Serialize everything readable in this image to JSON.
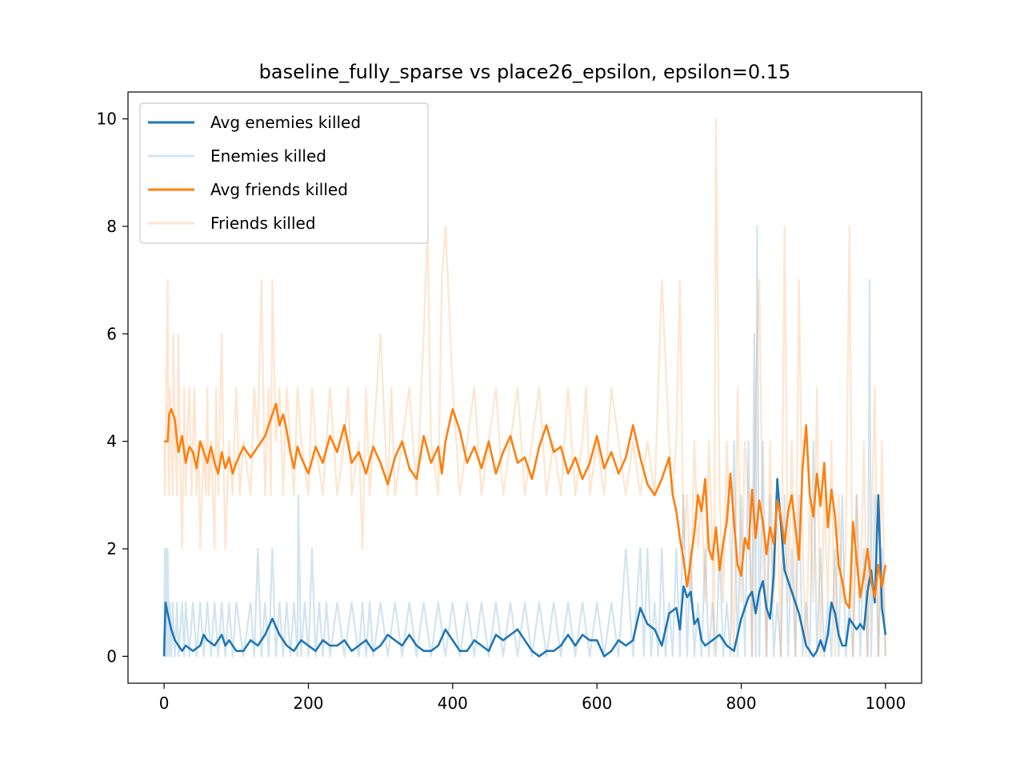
{
  "chart_data": {
    "type": "line",
    "title": "baseline_fully_sparse vs place26_epsilon, epsilon=0.15",
    "xlabel": "",
    "ylabel": "",
    "xlim": [
      -50,
      1050
    ],
    "ylim": [
      -0.5,
      10.5
    ],
    "xticks": [
      0,
      200,
      400,
      600,
      800,
      1000
    ],
    "yticks": [
      0,
      2,
      4,
      6,
      8,
      10
    ],
    "grid": false,
    "legend_position": "top-left",
    "series": [
      {
        "name": "Avg enemies killed",
        "color": "#1f77b4",
        "opacity": 1,
        "smoothed": true,
        "x": [
          0,
          2,
          5,
          10,
          15,
          20,
          25,
          30,
          40,
          50,
          55,
          60,
          70,
          80,
          85,
          90,
          100,
          110,
          120,
          130,
          140,
          150,
          160,
          170,
          180,
          190,
          200,
          210,
          220,
          230,
          240,
          250,
          260,
          270,
          280,
          290,
          300,
          310,
          320,
          330,
          340,
          350,
          360,
          370,
          380,
          390,
          400,
          410,
          420,
          430,
          440,
          450,
          460,
          470,
          480,
          490,
          500,
          510,
          520,
          530,
          540,
          550,
          560,
          570,
          580,
          590,
          600,
          610,
          620,
          630,
          640,
          650,
          660,
          670,
          680,
          690,
          700,
          710,
          715,
          720,
          725,
          730,
          735,
          740,
          745,
          750,
          760,
          770,
          780,
          790,
          800,
          805,
          810,
          815,
          820,
          825,
          830,
          835,
          840,
          845,
          850,
          860,
          870,
          880,
          890,
          900,
          905,
          910,
          915,
          920,
          925,
          930,
          935,
          940,
          945,
          950,
          960,
          965,
          970,
          975,
          980,
          985,
          990,
          995,
          1000
        ],
        "y": [
          0,
          1.0,
          0.8,
          0.5,
          0.3,
          0.2,
          0.1,
          0.2,
          0.1,
          0.2,
          0.4,
          0.3,
          0.2,
          0.4,
          0.2,
          0.3,
          0.1,
          0.1,
          0.3,
          0.2,
          0.4,
          0.7,
          0.4,
          0.2,
          0.1,
          0.3,
          0.2,
          0.1,
          0.3,
          0.2,
          0.2,
          0.3,
          0.1,
          0.2,
          0.3,
          0.1,
          0.2,
          0.4,
          0.3,
          0.2,
          0.4,
          0.2,
          0.1,
          0.1,
          0.2,
          0.5,
          0.3,
          0.1,
          0.1,
          0.3,
          0.2,
          0.1,
          0.4,
          0.3,
          0.4,
          0.5,
          0.3,
          0.1,
          0.0,
          0.1,
          0.1,
          0.2,
          0.4,
          0.2,
          0.4,
          0.3,
          0.3,
          0.0,
          0.1,
          0.3,
          0.2,
          0.3,
          0.9,
          0.6,
          0.5,
          0.2,
          0.8,
          0.9,
          0.5,
          1.3,
          1.1,
          1.2,
          0.6,
          0.7,
          0.3,
          0.2,
          0.3,
          0.4,
          0.2,
          0.1,
          0.7,
          0.9,
          1.1,
          1.2,
          0.8,
          1.2,
          1.4,
          0.9,
          0.7,
          1.5,
          3.3,
          1.6,
          1.2,
          0.8,
          0.2,
          0.0,
          0.1,
          0.3,
          0.1,
          0.4,
          1.0,
          0.8,
          0.4,
          0.2,
          0.2,
          0.7,
          0.5,
          0.6,
          0.5,
          1.2,
          1.6,
          1.0,
          3.0,
          0.9,
          0.4
        ]
      },
      {
        "name": "Enemies killed",
        "color": "#1f77b4",
        "opacity": 0.2,
        "smoothed": false,
        "x": [
          0,
          1,
          2,
          3,
          4,
          5,
          6,
          7,
          8,
          10,
          12,
          15,
          18,
          20,
          25,
          28,
          30,
          35,
          40,
          45,
          50,
          55,
          60,
          65,
          70,
          75,
          80,
          85,
          90,
          95,
          100,
          110,
          120,
          125,
          130,
          135,
          140,
          145,
          150,
          155,
          160,
          165,
          170,
          175,
          180,
          185,
          186,
          190,
          195,
          200,
          205,
          210,
          215,
          220,
          225,
          230,
          240,
          250,
          260,
          270,
          275,
          280,
          285,
          290,
          300,
          310,
          320,
          330,
          340,
          350,
          360,
          370,
          380,
          390,
          400,
          410,
          420,
          430,
          440,
          450,
          460,
          470,
          480,
          490,
          500,
          510,
          520,
          530,
          540,
          550,
          560,
          570,
          580,
          590,
          600,
          610,
          620,
          630,
          640,
          650,
          660,
          665,
          670,
          675,
          680,
          685,
          690,
          695,
          700,
          705,
          710,
          715,
          720,
          725,
          730,
          735,
          740,
          745,
          750,
          755,
          760,
          765,
          770,
          775,
          780,
          785,
          790,
          795,
          800,
          805,
          810,
          815,
          818,
          820,
          822,
          825,
          830,
          835,
          840,
          845,
          850,
          855,
          860,
          865,
          870,
          875,
          880,
          885,
          890,
          895,
          900,
          905,
          910,
          915,
          920,
          925,
          930,
          935,
          940,
          945,
          950,
          955,
          960,
          965,
          970,
          975,
          978,
          980,
          985,
          990,
          995,
          1000
        ],
        "y": [
          0,
          2,
          0,
          2,
          0,
          2,
          1,
          0,
          1,
          0,
          1,
          0,
          1,
          0,
          1,
          0,
          1,
          0,
          1,
          0,
          1,
          0,
          1,
          0,
          1,
          0,
          1,
          0,
          1,
          0,
          1,
          0,
          1,
          0,
          2,
          0,
          1,
          0,
          2,
          0,
          1,
          0,
          1,
          0,
          1,
          0,
          3,
          0,
          1,
          0,
          2,
          0,
          1,
          0,
          1,
          0,
          1,
          0,
          1,
          0,
          1,
          0,
          1,
          0,
          1,
          0,
          1,
          0,
          1,
          0,
          1,
          0,
          1,
          0,
          1,
          0,
          1,
          0,
          1,
          0,
          1,
          0,
          1,
          0,
          1,
          0,
          1,
          0,
          1,
          0,
          1,
          0,
          1,
          0,
          1,
          0,
          1,
          0,
          2,
          0,
          2,
          0,
          2,
          0,
          1,
          0,
          2,
          0,
          1,
          0,
          2,
          0,
          3,
          0,
          2,
          0,
          1,
          0,
          2,
          0,
          1,
          0,
          2,
          0,
          1,
          0,
          4,
          0,
          3,
          0,
          4,
          0,
          6,
          0,
          8,
          0,
          4,
          0,
          3,
          0,
          1,
          0,
          3,
          0,
          2,
          0,
          3,
          0,
          1,
          0,
          4,
          0,
          2,
          0,
          1,
          0,
          2,
          0,
          3,
          0,
          1,
          0,
          3,
          0,
          2,
          0,
          7,
          0,
          3,
          0,
          2,
          0
        ]
      },
      {
        "name": "Avg friends killed",
        "color": "#ff7f0e",
        "opacity": 1,
        "smoothed": true,
        "x": [
          0,
          5,
          7,
          10,
          15,
          18,
          20,
          25,
          30,
          35,
          40,
          45,
          50,
          55,
          60,
          65,
          70,
          75,
          80,
          85,
          90,
          95,
          100,
          110,
          120,
          130,
          140,
          150,
          155,
          160,
          165,
          170,
          175,
          180,
          185,
          190,
          200,
          210,
          220,
          230,
          240,
          250,
          260,
          270,
          280,
          290,
          300,
          310,
          320,
          330,
          340,
          350,
          360,
          370,
          380,
          385,
          390,
          400,
          410,
          420,
          430,
          440,
          450,
          460,
          470,
          480,
          490,
          500,
          510,
          520,
          530,
          540,
          550,
          560,
          570,
          580,
          590,
          600,
          610,
          620,
          630,
          640,
          650,
          660,
          670,
          680,
          690,
          700,
          705,
          710,
          715,
          720,
          725,
          730,
          735,
          740,
          745,
          750,
          755,
          760,
          765,
          770,
          775,
          780,
          785,
          790,
          795,
          800,
          805,
          810,
          815,
          820,
          825,
          830,
          835,
          840,
          845,
          850,
          855,
          860,
          865,
          870,
          875,
          880,
          885,
          890,
          895,
          900,
          905,
          910,
          915,
          920,
          925,
          930,
          935,
          940,
          945,
          950,
          955,
          960,
          965,
          970,
          975,
          980,
          985,
          990,
          995,
          1000
        ],
        "y": [
          4.0,
          4.0,
          4.5,
          4.6,
          4.4,
          4.0,
          3.8,
          4.1,
          3.6,
          3.9,
          3.8,
          3.5,
          4.0,
          3.8,
          3.6,
          3.9,
          3.6,
          3.4,
          3.8,
          3.5,
          3.7,
          3.4,
          3.6,
          3.9,
          3.7,
          3.9,
          4.1,
          4.5,
          4.7,
          4.3,
          4.5,
          4.2,
          3.8,
          3.5,
          3.9,
          3.7,
          3.4,
          3.9,
          3.6,
          4.1,
          3.8,
          4.3,
          3.6,
          3.8,
          3.4,
          3.9,
          3.6,
          3.2,
          3.7,
          4.0,
          3.5,
          3.3,
          4.1,
          3.6,
          3.9,
          3.4,
          4.0,
          4.6,
          4.2,
          3.6,
          3.9,
          3.5,
          4.0,
          3.4,
          3.8,
          4.1,
          3.6,
          3.7,
          3.3,
          3.9,
          4.3,
          3.8,
          3.9,
          3.4,
          3.7,
          3.3,
          3.6,
          4.1,
          3.5,
          3.8,
          3.4,
          3.7,
          4.3,
          3.7,
          3.2,
          3.0,
          3.3,
          3.7,
          3.0,
          2.7,
          2.2,
          1.8,
          1.3,
          1.8,
          2.3,
          3.0,
          2.7,
          3.3,
          2.0,
          1.8,
          2.4,
          1.6,
          2.1,
          2.5,
          3.4,
          2.5,
          1.7,
          1.5,
          2.2,
          2.0,
          3.1,
          2.2,
          2.9,
          2.5,
          1.9,
          2.4,
          2.1,
          2.9,
          2.6,
          2.1,
          2.7,
          3.0,
          2.4,
          1.8,
          3.5,
          4.3,
          3.0,
          2.6,
          3.4,
          2.8,
          3.6,
          2.4,
          3.1,
          2.6,
          1.7,
          1.4,
          1.0,
          0.9,
          2.5,
          1.8,
          1.1,
          1.5,
          2.0,
          1.4,
          1.1,
          1.7,
          1.3,
          1.7
        ]
      },
      {
        "name": "Friends killed",
        "color": "#ff7f0e",
        "opacity": 0.2,
        "smoothed": false,
        "x": [
          0,
          1,
          3,
          5,
          6,
          7,
          8,
          10,
          12,
          13,
          15,
          18,
          20,
          22,
          25,
          28,
          30,
          32,
          35,
          38,
          40,
          42,
          45,
          48,
          50,
          55,
          58,
          60,
          62,
          65,
          70,
          72,
          75,
          80,
          82,
          85,
          90,
          95,
          100,
          105,
          110,
          120,
          125,
          130,
          135,
          140,
          145,
          148,
          150,
          155,
          160,
          165,
          170,
          175,
          180,
          185,
          190,
          200,
          205,
          210,
          220,
          230,
          240,
          250,
          255,
          260,
          270,
          275,
          280,
          285,
          290,
          300,
          310,
          315,
          320,
          330,
          340,
          350,
          360,
          365,
          370,
          380,
          385,
          390,
          400,
          410,
          420,
          430,
          440,
          450,
          460,
          470,
          480,
          490,
          500,
          510,
          520,
          530,
          540,
          550,
          560,
          570,
          580,
          585,
          590,
          600,
          610,
          620,
          630,
          640,
          650,
          660,
          670,
          680,
          690,
          700,
          705,
          710,
          715,
          720,
          725,
          730,
          735,
          740,
          745,
          750,
          755,
          760,
          762,
          765,
          770,
          775,
          780,
          785,
          790,
          795,
          800,
          805,
          810,
          815,
          820,
          825,
          830,
          835,
          840,
          845,
          850,
          855,
          860,
          865,
          870,
          875,
          880,
          885,
          890,
          895,
          900,
          905,
          910,
          915,
          920,
          925,
          930,
          935,
          940,
          945,
          950,
          955,
          960,
          965,
          970,
          975,
          980,
          985,
          990,
          995,
          1000
        ],
        "y": [
          4,
          3,
          5,
          7,
          4,
          3,
          5,
          4,
          3,
          6,
          4,
          3,
          6,
          4,
          2,
          5,
          3,
          4,
          5,
          3,
          4,
          5,
          3,
          4,
          2,
          4,
          3,
          5,
          3,
          4,
          2,
          5,
          3,
          6,
          4,
          2,
          4,
          3,
          5,
          3,
          4,
          3,
          5,
          4,
          7,
          3,
          5,
          3,
          7,
          4,
          5,
          3,
          5,
          4,
          3,
          5,
          4,
          3,
          5,
          4,
          3,
          5,
          3,
          4,
          5,
          3,
          4,
          2,
          5,
          3,
          4,
          6,
          3,
          5,
          3,
          4,
          5,
          3,
          6,
          8,
          4,
          3,
          7,
          8,
          5,
          3,
          4,
          5,
          3,
          4,
          5,
          3,
          4,
          5,
          3,
          4,
          5,
          3,
          4,
          3,
          5,
          3,
          4,
          5,
          3,
          4,
          3,
          5,
          4,
          3,
          4,
          3,
          4,
          3,
          7,
          4,
          3,
          4,
          7,
          2,
          3,
          1,
          4,
          2,
          3,
          1,
          4,
          2,
          0,
          10,
          3,
          1,
          4,
          2,
          0,
          5,
          1,
          4,
          3,
          0,
          5,
          7,
          2,
          0,
          4,
          1,
          3,
          0,
          8,
          1,
          4,
          0,
          7,
          2,
          0,
          3,
          1,
          5,
          0,
          3,
          1,
          4,
          0,
          3,
          1,
          2,
          8,
          0,
          3,
          1,
          4,
          0,
          2,
          5,
          0,
          4,
          0
        ]
      }
    ]
  }
}
